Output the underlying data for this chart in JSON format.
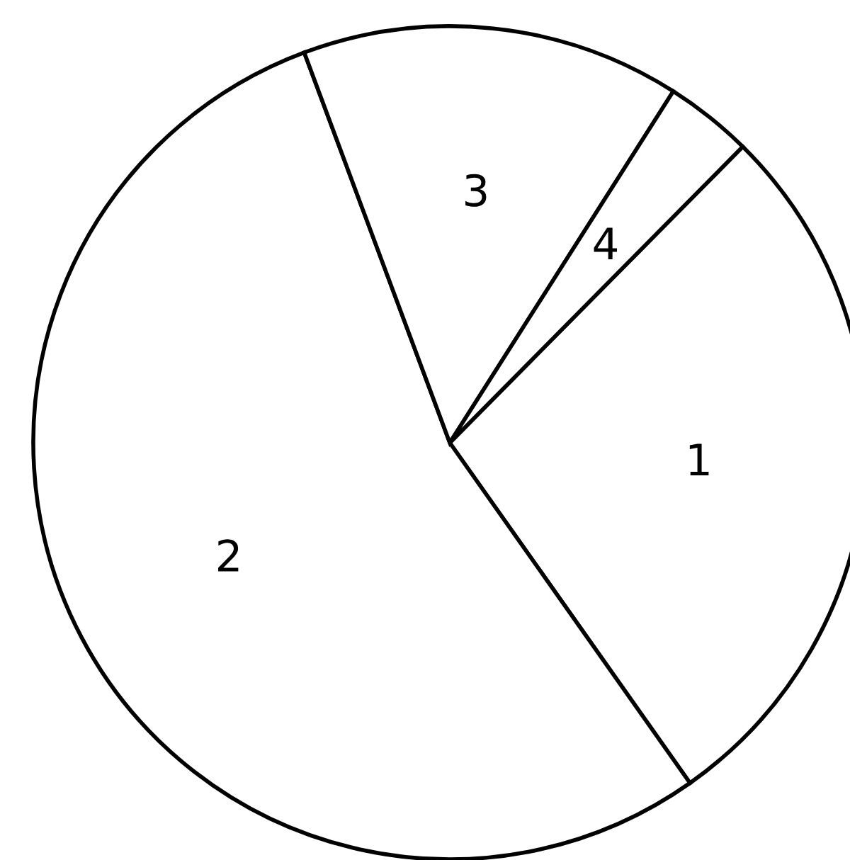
{
  "chart_data": {
    "type": "pie",
    "categories": [
      "1",
      "2",
      "3",
      "4"
    ],
    "values": [
      27.8,
      54.1,
      14.7,
      3.4
    ],
    "colors": [
      "#ffffff",
      "#ffffff",
      "#ffffff",
      "#ffffff"
    ],
    "legend": false
  }
}
